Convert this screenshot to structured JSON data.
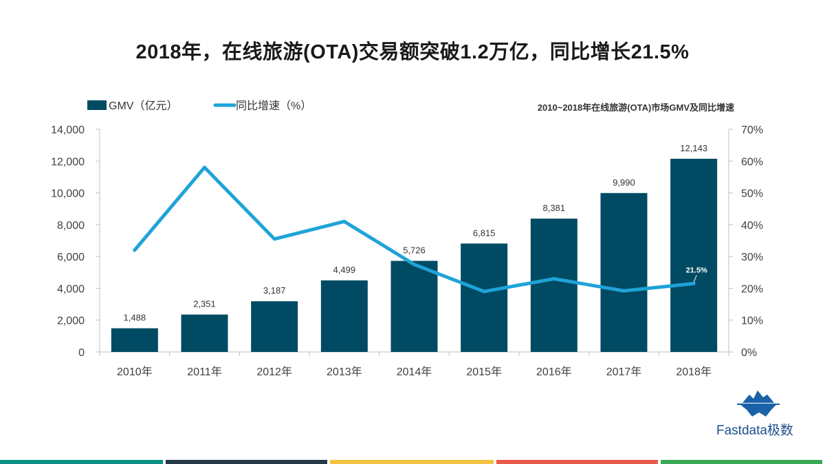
{
  "title": "2018年，在线旅游(OTA)交易额突破1.2万亿，同比增长21.5%",
  "colors": {
    "bar": "#004b63",
    "line": "#1fa3d8",
    "axis": "#bfbfbf",
    "tick_text": "#404040",
    "footer": [
      "#0e8f86",
      "#243847",
      "#f4c242",
      "#e8594a",
      "#3aa957"
    ]
  },
  "logo": {
    "icon": "iceberg-logo-icon",
    "text": "Fastdata极数"
  },
  "chart_data": {
    "type": "bar",
    "subtitle": "2010~2018年在线旅游(OTA)市场GMV及同比增速",
    "categories": [
      "2010年",
      "2011年",
      "2012年",
      "2013年",
      "2014年",
      "2015年",
      "2016年",
      "2017年",
      "2018年"
    ],
    "series": [
      {
        "name": "GMV（亿元）",
        "type": "bar",
        "axis": "left",
        "values": [
          1488,
          2351,
          3187,
          4499,
          5726,
          6815,
          8381,
          9990,
          12143
        ],
        "labels": [
          "1,488",
          "2,351",
          "3,187",
          "4,499",
          "5,726",
          "6,815",
          "8,381",
          "9,990",
          "12,143"
        ]
      },
      {
        "name": "同比增速（%）",
        "type": "line",
        "axis": "right",
        "values": [
          32,
          58,
          35.5,
          41,
          27.5,
          19,
          23,
          19.2,
          21.5
        ],
        "annotation": {
          "index": 8,
          "text": "21.5%"
        }
      }
    ],
    "y_left": {
      "min": 0,
      "max": 14000,
      "ticks": [
        "0",
        "2,000",
        "4,000",
        "6,000",
        "8,000",
        "10,000",
        "12,000",
        "14,000"
      ]
    },
    "y_right": {
      "min": 0,
      "max": 70,
      "ticks": [
        "0%",
        "10%",
        "20%",
        "30%",
        "40%",
        "50%",
        "60%",
        "70%"
      ]
    },
    "grid": false,
    "legend": "top-left"
  }
}
